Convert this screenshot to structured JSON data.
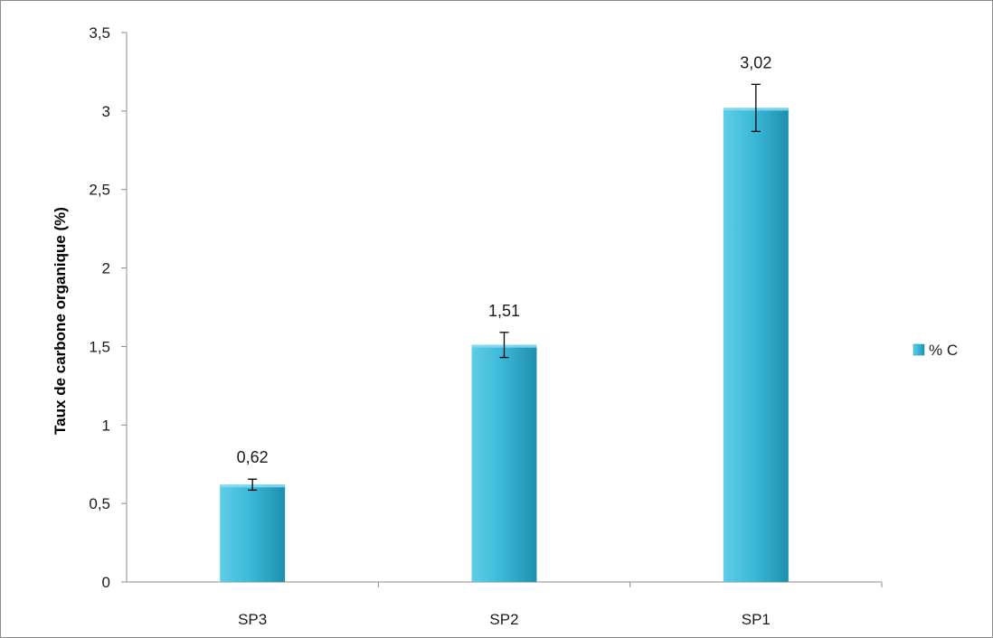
{
  "chart_data": {
    "type": "bar",
    "categories": [
      "SP3",
      "SP2",
      "SP1"
    ],
    "series": [
      {
        "name": "% C",
        "values": [
          0.62,
          1.51,
          3.02
        ],
        "error": [
          0.035,
          0.08,
          0.15
        ],
        "data_labels": [
          "0,62",
          "1,51",
          "3,02"
        ]
      }
    ],
    "title": "",
    "xlabel": "",
    "ylabel": "Taux de carbone organique  (%)",
    "ylim": [
      0,
      3.5
    ],
    "yticks": [
      0,
      0.5,
      1,
      1.5,
      2,
      2.5,
      3,
      3.5
    ],
    "ytick_labels": [
      "0",
      "0,5",
      "1",
      "1,5",
      "2",
      "2,5",
      "3",
      "3,5"
    ],
    "grid": false,
    "legend_position": "right",
    "bar_color": "#2fa8c8"
  }
}
